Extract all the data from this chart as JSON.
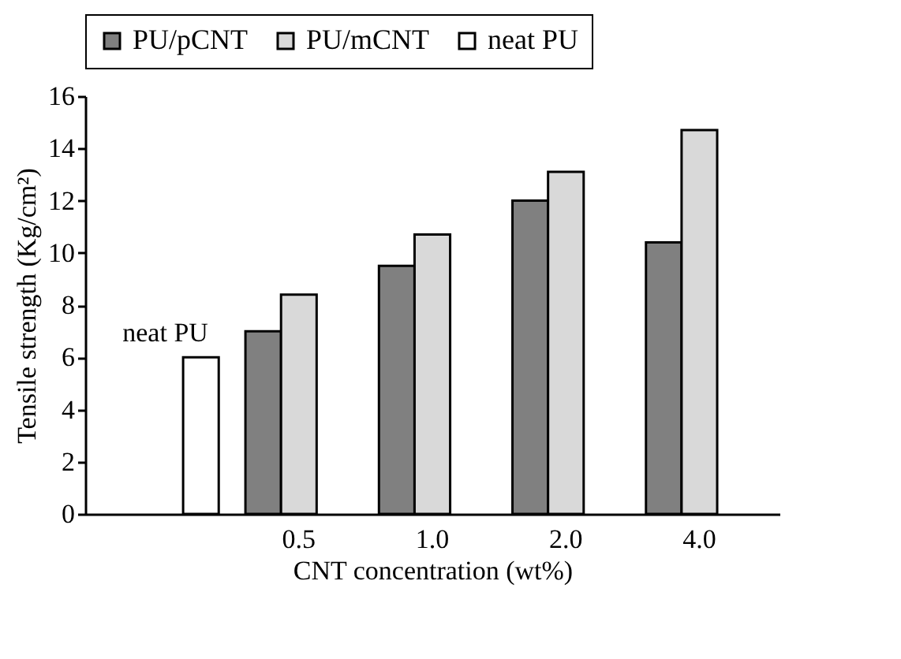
{
  "chart_data": {
    "type": "bar",
    "xlabel": "CNT concentration (wt%)",
    "ylabel": "Tensile strength (Kg/cm²)",
    "categories": [
      null,
      "0.5",
      "1.0",
      "2.0",
      "4.0"
    ],
    "series": [
      {
        "name": "PU/pCNT",
        "color": "#808080",
        "values": [
          null,
          7.0,
          9.5,
          12.0,
          10.4
        ]
      },
      {
        "name": "PU/mCNT",
        "color": "#d9d9d9",
        "values": [
          null,
          8.4,
          10.7,
          13.1,
          14.7
        ]
      },
      {
        "name": "neat PU",
        "color": "#ffffff",
        "values": [
          6.0,
          null,
          null,
          null,
          null
        ]
      }
    ],
    "ylim": [
      0,
      16
    ],
    "yticks": [
      0,
      2,
      4,
      6,
      8,
      10,
      12,
      14,
      16
    ],
    "grid": false,
    "legend": "top",
    "annotations": [
      "neat PU"
    ]
  }
}
